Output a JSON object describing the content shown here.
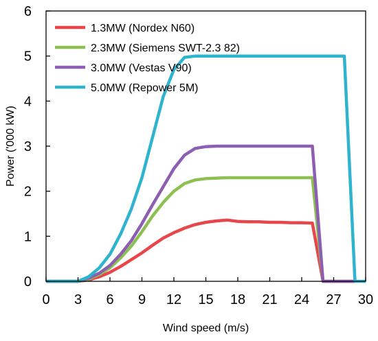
{
  "chart_data": {
    "type": "line",
    "xlabel": "Wind speed (m/s)",
    "ylabel": "Power ('000 kW)",
    "xlim": [
      0,
      30
    ],
    "ylim": [
      0,
      6
    ],
    "x_ticks": [
      0,
      3,
      6,
      9,
      12,
      15,
      18,
      21,
      24,
      27,
      30
    ],
    "y_ticks": [
      0,
      1,
      2,
      3,
      4,
      5,
      6
    ],
    "grid": false,
    "legend_position": "top-left",
    "series": [
      {
        "name": "1.3MW (Nordex N60)",
        "color": "#e8464a",
        "points": [
          [
            0,
            0
          ],
          [
            3,
            0
          ],
          [
            4,
            0.03
          ],
          [
            5,
            0.1
          ],
          [
            6,
            0.2
          ],
          [
            7,
            0.33
          ],
          [
            8,
            0.48
          ],
          [
            9,
            0.63
          ],
          [
            10,
            0.8
          ],
          [
            11,
            0.96
          ],
          [
            12,
            1.08
          ],
          [
            13,
            1.18
          ],
          [
            14,
            1.26
          ],
          [
            15,
            1.31
          ],
          [
            16,
            1.34
          ],
          [
            17,
            1.36
          ],
          [
            18,
            1.33
          ],
          [
            19,
            1.32
          ],
          [
            20,
            1.32
          ],
          [
            21,
            1.31
          ],
          [
            22,
            1.31
          ],
          [
            23,
            1.3
          ],
          [
            24,
            1.3
          ],
          [
            25,
            1.29
          ],
          [
            26,
            0
          ],
          [
            29,
            0
          ]
        ]
      },
      {
        "name": "2.3MW (Siemens SWT-2.3 82)",
        "color": "#8cc152",
        "points": [
          [
            0,
            0
          ],
          [
            3,
            0
          ],
          [
            4,
            0.05
          ],
          [
            5,
            0.15
          ],
          [
            6,
            0.3
          ],
          [
            7,
            0.52
          ],
          [
            8,
            0.78
          ],
          [
            9,
            1.1
          ],
          [
            10,
            1.45
          ],
          [
            11,
            1.75
          ],
          [
            12,
            2.0
          ],
          [
            13,
            2.17
          ],
          [
            14,
            2.25
          ],
          [
            15,
            2.28
          ],
          [
            16,
            2.29
          ],
          [
            17,
            2.3
          ],
          [
            18,
            2.3
          ],
          [
            25,
            2.3
          ],
          [
            26,
            0
          ],
          [
            29,
            0
          ]
        ]
      },
      {
        "name": "3.0MW (Vestas V90)",
        "color": "#8c5fb2",
        "points": [
          [
            0,
            0
          ],
          [
            3,
            0
          ],
          [
            4,
            0.07
          ],
          [
            5,
            0.18
          ],
          [
            6,
            0.35
          ],
          [
            7,
            0.6
          ],
          [
            8,
            0.9
          ],
          [
            9,
            1.28
          ],
          [
            10,
            1.7
          ],
          [
            11,
            2.1
          ],
          [
            12,
            2.5
          ],
          [
            13,
            2.8
          ],
          [
            14,
            2.95
          ],
          [
            15,
            2.99
          ],
          [
            16,
            3.0
          ],
          [
            25,
            3.0
          ],
          [
            26,
            0
          ],
          [
            29,
            0
          ]
        ]
      },
      {
        "name": "5.0MW (Repower 5M)",
        "color": "#2fb4cf",
        "points": [
          [
            0,
            0
          ],
          [
            3,
            0
          ],
          [
            4,
            0.1
          ],
          [
            5,
            0.3
          ],
          [
            6,
            0.6
          ],
          [
            7,
            1.05
          ],
          [
            8,
            1.6
          ],
          [
            9,
            2.3
          ],
          [
            10,
            3.2
          ],
          [
            11,
            4.1
          ],
          [
            12,
            4.7
          ],
          [
            13,
            4.97
          ],
          [
            14,
            5.0
          ],
          [
            28,
            5.0
          ],
          [
            29,
            0
          ],
          [
            30,
            0
          ]
        ]
      }
    ]
  }
}
